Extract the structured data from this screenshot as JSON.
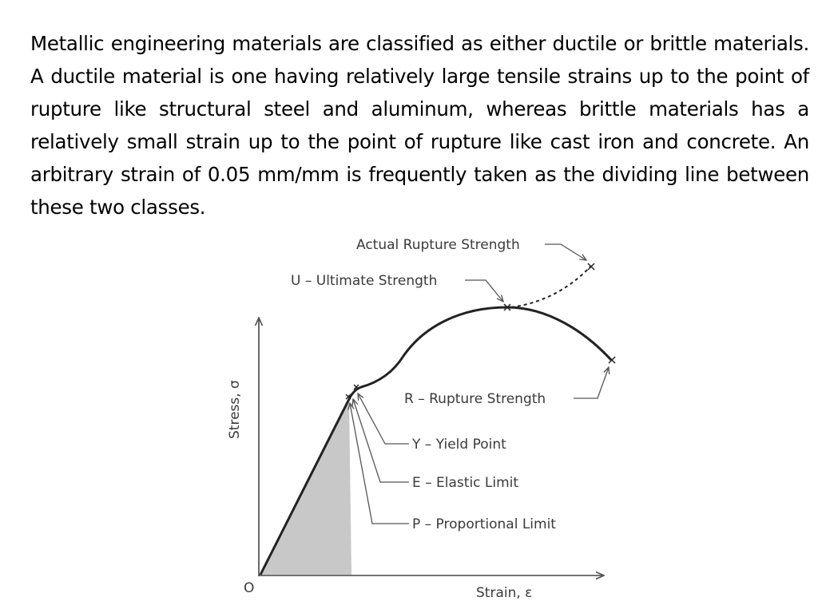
{
  "paragraph": "Metallic engineering materials are classified as either ductile or brittle materials. A ductile material is one having relatively large tensile strains up to the point of rupture like structural steel and aluminum, whereas brittle materials has a relatively small strain up to the point of rupture like cast iron and concrete. An arbitrary strain of 0.05 mm/mm is frequently taken as the dividing line between these two classes.",
  "diagram": {
    "origin_label": "O",
    "x_axis_label": "Strain, ε",
    "y_axis_label": "Stress, σ",
    "labels": {
      "actual_rupture": "Actual Rupture Strength",
      "ultimate": "U – Ultimate Strength",
      "rupture": "R – Rupture Strength",
      "yield": "Y – Yield Point",
      "elastic": "E – Elastic Limit",
      "proportional": "P – Proportional Limit"
    },
    "colors": {
      "curve": "#222222",
      "shade": "#c8c8c8",
      "label": "#3a3a3a"
    }
  }
}
